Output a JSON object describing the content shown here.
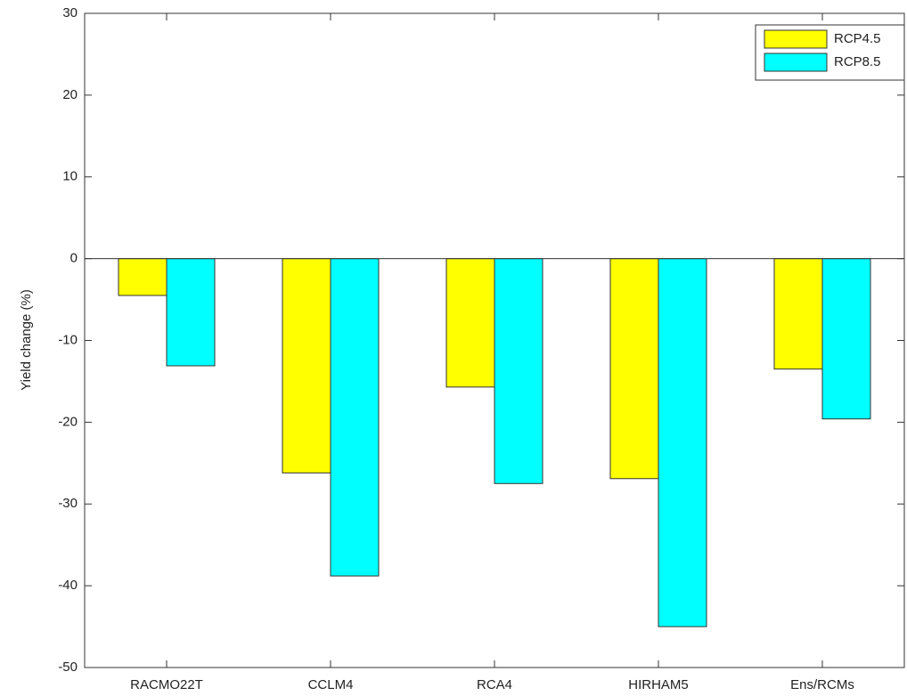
{
  "chart_data": {
    "type": "bar",
    "y_label": "Yield change (%)",
    "categories": [
      "RACMO22T",
      "CCLM4",
      "RCA4",
      "HIRHAM5",
      "Ens/RCMs"
    ],
    "series": [
      {
        "name": "RCP4.5",
        "color": "#ffff00",
        "values": [
          -4.5,
          -26.2,
          -15.7,
          -26.9,
          -13.5
        ]
      },
      {
        "name": "RCP8.5",
        "color": "#00ffff",
        "values": [
          -13.1,
          -38.8,
          -27.5,
          -45.0,
          -19.6
        ]
      }
    ],
    "ylim": [
      -50,
      30
    ],
    "yticks": [
      -50,
      -40,
      -30,
      -20,
      -10,
      0,
      10,
      20,
      30
    ],
    "grid": false,
    "legend": "northeast"
  }
}
